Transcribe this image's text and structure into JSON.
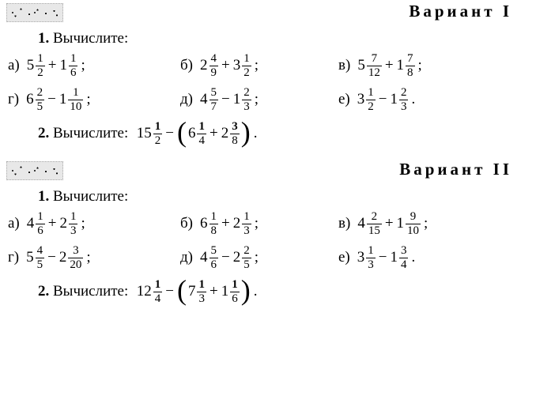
{
  "typography": {
    "body_fontsize_pt": 15,
    "title_fontsize_pt": 16,
    "fraction_fontsize_pt": 12,
    "font_family": "Times New Roman",
    "text_color": "#000000",
    "background_color": "#ffffff"
  },
  "variants": [
    {
      "title": "Вариант I",
      "task1_title_num": "1.",
      "task1_title_text": "Вычислите:",
      "items": [
        {
          "label": "а)",
          "a_whole": "5",
          "a_num": "1",
          "a_den": "2",
          "op": "+",
          "b_whole": "1",
          "b_num": "1",
          "b_den": "6",
          "punct": ";"
        },
        {
          "label": "б)",
          "a_whole": "2",
          "a_num": "4",
          "a_den": "9",
          "op": "+",
          "b_whole": "3",
          "b_num": "1",
          "b_den": "2",
          "punct": ";"
        },
        {
          "label": "в)",
          "a_whole": "5",
          "a_num": "7",
          "a_den": "12",
          "op": "+",
          "b_whole": "1",
          "b_num": "7",
          "b_den": "8",
          "punct": ";"
        },
        {
          "label": "г)",
          "a_whole": "6",
          "a_num": "2",
          "a_den": "5",
          "op": "−",
          "b_whole": "1",
          "b_num": "1",
          "b_den": "10",
          "punct": ";"
        },
        {
          "label": "д)",
          "a_whole": "4",
          "a_num": "5",
          "a_den": "7",
          "op": "−",
          "b_whole": "1",
          "b_num": "2",
          "b_den": "3",
          "punct": ";"
        },
        {
          "label": "е)",
          "a_whole": "3",
          "a_num": "1",
          "a_den": "2",
          "op": "−",
          "b_whole": "1",
          "b_num": "2",
          "b_den": "3",
          "punct": "."
        }
      ],
      "task2_title_num": "2.",
      "task2_title_text": "Вычислите:",
      "task2_lead_whole": "15",
      "task2_lead_num": "1",
      "task2_lead_den": "2",
      "task2_op1": "−",
      "task2_p1_whole": "6",
      "task2_p1_num": "1",
      "task2_p1_den": "4",
      "task2_pop": "+",
      "task2_p2_whole": "2",
      "task2_p2_num": "3",
      "task2_p2_den": "8",
      "task2_punct": "."
    },
    {
      "title": "Вариант II",
      "task1_title_num": "1.",
      "task1_title_text": "Вычислите:",
      "items": [
        {
          "label": "а)",
          "a_whole": "4",
          "a_num": "1",
          "a_den": "6",
          "op": "+",
          "b_whole": "2",
          "b_num": "1",
          "b_den": "3",
          "punct": ";"
        },
        {
          "label": "б)",
          "a_whole": "6",
          "a_num": "1",
          "a_den": "8",
          "op": "+",
          "b_whole": "2",
          "b_num": "1",
          "b_den": "3",
          "punct": ";"
        },
        {
          "label": "в)",
          "a_whole": "4",
          "a_num": "2",
          "a_den": "15",
          "op": "+",
          "b_whole": "1",
          "b_num": "9",
          "b_den": "10",
          "punct": ";"
        },
        {
          "label": "г)",
          "a_whole": "5",
          "a_num": "4",
          "a_den": "5",
          "op": "−",
          "b_whole": "2",
          "b_num": "3",
          "b_den": "20",
          "punct": ";"
        },
        {
          "label": "д)",
          "a_whole": "4",
          "a_num": "5",
          "a_den": "6",
          "op": "−",
          "b_whole": "2",
          "b_num": "2",
          "b_den": "5",
          "punct": ";"
        },
        {
          "label": "е)",
          "a_whole": "3",
          "a_num": "1",
          "a_den": "3",
          "op": "−",
          "b_whole": "1",
          "b_num": "3",
          "b_den": "4",
          "punct": "."
        }
      ],
      "task2_title_num": "2.",
      "task2_title_text": "Вычислите:",
      "task2_lead_whole": "12",
      "task2_lead_num": "1",
      "task2_lead_den": "4",
      "task2_op1": "−",
      "task2_p1_whole": "7",
      "task2_p1_num": "1",
      "task2_p1_den": "3",
      "task2_pop": "+",
      "task2_p2_whole": "1",
      "task2_p2_num": "1",
      "task2_p2_den": "6",
      "task2_punct": "."
    }
  ]
}
